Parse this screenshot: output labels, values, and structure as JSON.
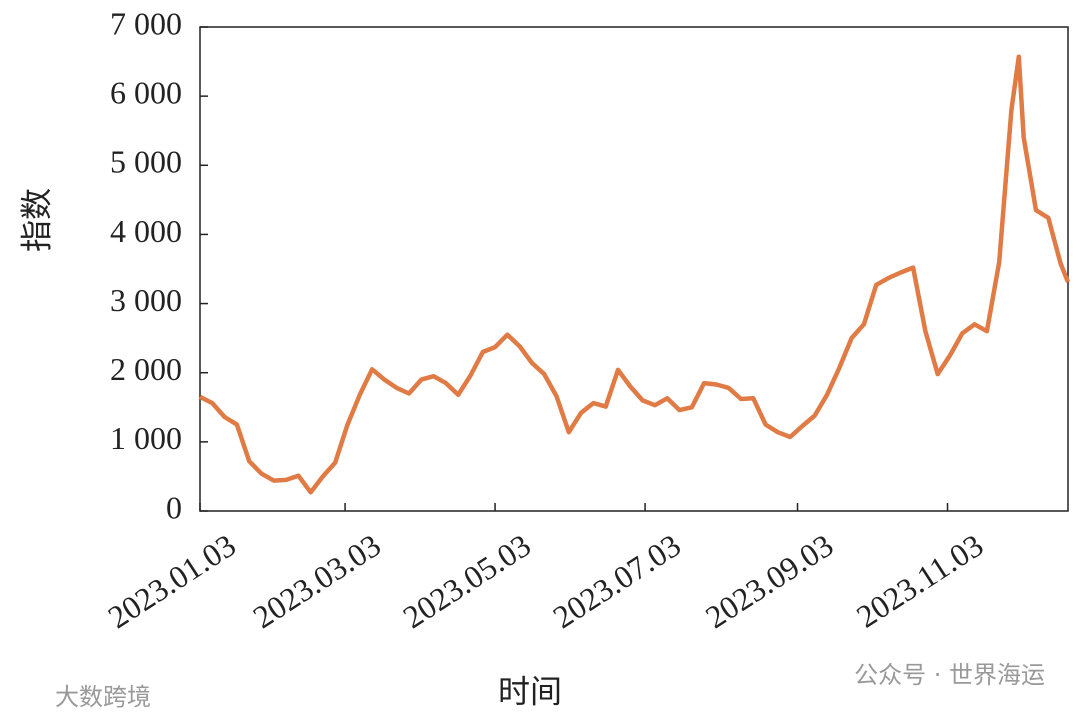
{
  "chart_data": {
    "type": "line",
    "ylabel": "指数",
    "xlabel": "时间",
    "watermarks": [
      "公众号 · 世界海运",
      "大数跨境"
    ],
    "color": "#e07b45",
    "x": [
      "2023.01.03",
      "2023.01.08",
      "2023.01.13",
      "2023.01.18",
      "2023.01.23",
      "2023.01.28",
      "2023.02.02",
      "2023.02.07",
      "2023.02.12",
      "2023.02.17",
      "2023.02.22",
      "2023.02.27",
      "2023.03.04",
      "2023.03.09",
      "2023.03.14",
      "2023.03.19",
      "2023.03.24",
      "2023.03.29",
      "2023.04.03",
      "2023.04.08",
      "2023.04.13",
      "2023.04.18",
      "2023.04.23",
      "2023.04.28",
      "2023.05.03",
      "2023.05.08",
      "2023.05.13",
      "2023.05.18",
      "2023.05.23",
      "2023.05.28",
      "2023.06.02",
      "2023.06.07",
      "2023.06.12",
      "2023.06.17",
      "2023.06.22",
      "2023.06.27",
      "2023.07.02",
      "2023.07.07",
      "2023.07.12",
      "2023.07.17",
      "2023.07.22",
      "2023.07.27",
      "2023.08.01",
      "2023.08.06",
      "2023.08.11",
      "2023.08.16",
      "2023.08.21",
      "2023.08.26",
      "2023.08.31",
      "2023.09.05",
      "2023.09.10",
      "2023.09.15",
      "2023.09.20",
      "2023.09.25",
      "2023.09.30",
      "2023.10.05",
      "2023.10.10",
      "2023.10.15",
      "2023.10.20",
      "2023.10.25",
      "2023.10.30",
      "2023.11.04",
      "2023.11.09",
      "2023.11.14",
      "2023.11.19",
      "2023.11.24",
      "2023.11.29",
      "2023.12.02",
      "2023.12.04",
      "2023.12.09",
      "2023.12.14",
      "2023.12.19",
      "2023.12.22"
    ],
    "values": [
      1650,
      1560,
      1360,
      1250,
      720,
      540,
      440,
      450,
      510,
      270,
      500,
      700,
      1250,
      1680,
      2050,
      1900,
      1780,
      1700,
      1900,
      1950,
      1850,
      1680,
      1960,
      2300,
      2370,
      2550,
      2380,
      2140,
      1980,
      1660,
      1140,
      1420,
      1560,
      1510,
      2040,
      1800,
      1600,
      1530,
      1630,
      1460,
      1500,
      1850,
      1830,
      1780,
      1620,
      1630,
      1250,
      1140,
      1070,
      1230,
      1380,
      1680,
      2070,
      2500,
      2700,
      3270,
      3370,
      3450,
      3520,
      2600,
      1980,
      2250,
      2570,
      2700,
      2600,
      3600,
      5800,
      6570,
      5400,
      4350,
      4240,
      3580,
      3310
    ],
    "xlim": [
      "2023.01.03",
      "2023.12.22"
    ],
    "xticks": [
      "2023.01.03",
      "2023.03.03",
      "2023.05.03",
      "2023.07.03",
      "2023.09.03",
      "2023.11.03"
    ],
    "ylim": [
      0,
      7000
    ],
    "yticks": [
      0,
      {
        "value": 1000,
        "label": "1 000"
      },
      {
        "value": 2000,
        "label": "2 000"
      },
      {
        "value": 3000,
        "label": "3 000"
      },
      {
        "value": 4000,
        "label": "4 000"
      },
      {
        "value": 5000,
        "label": "5 000"
      },
      {
        "value": 6000,
        "label": "6 000"
      },
      {
        "value": 7000,
        "label": "7 000"
      }
    ]
  }
}
